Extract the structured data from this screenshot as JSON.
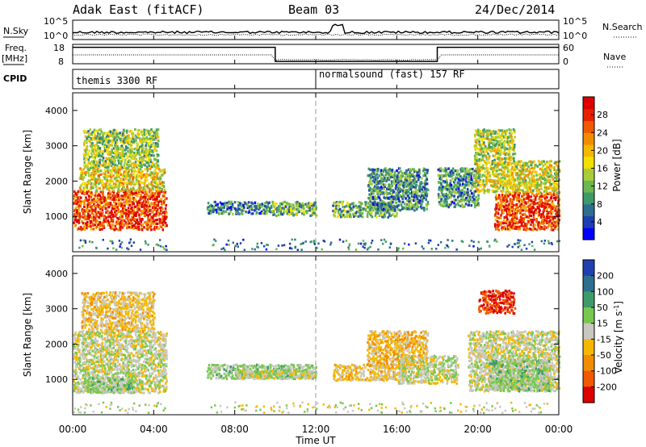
{
  "header": {
    "radar": "Adak East (fitACF)",
    "beam": "Beam 03",
    "date": "24/Dec/2014"
  },
  "strip_labels": {
    "nsky": "N.Sky",
    "freq_line1": "Freq.",
    "freq_line2": "[MHz]",
    "cpid": "CPID",
    "nsearch": "N.Search",
    "nave": "Nave"
  },
  "strip_ticks": {
    "noise_top": "10^5",
    "noise_bottom": "10^0",
    "freq_top": "18",
    "freq_bottom": "8",
    "nave_top": "60",
    "nave_bottom": "0"
  },
  "cpid": {
    "left_label": "themis 3300 RF",
    "right_label": "normalsound (fast) 157 RF"
  },
  "chart_data": [
    {
      "type": "heatmap",
      "name": "power",
      "ylabel": "Slant Range [km]",
      "yticks": [
        "1000",
        "2000",
        "3000",
        "4000"
      ],
      "ylim": [
        0,
        4500
      ],
      "colorbar": {
        "label": "Power [dB]",
        "ticks": [
          "4",
          "8",
          "12",
          "16",
          "20",
          "24",
          "28"
        ],
        "range": [
          0,
          32
        ],
        "colors": [
          "#0000ff",
          "#1e3fb0",
          "#2e6e8e",
          "#3f9a6a",
          "#6ab84e",
          "#a8cc3a",
          "#f2e000",
          "#f5b800",
          "#f28c00",
          "#f05a00",
          "#e82000",
          "#dd0000"
        ]
      },
      "echo_regions": [
        {
          "t": [
            0.0,
            4.6
          ],
          "r": [
            650,
            1750
          ],
          "value": 27
        },
        {
          "t": [
            0.3,
            4.5
          ],
          "r": [
            1750,
            2400
          ],
          "value": 18
        },
        {
          "t": [
            0.5,
            4.2
          ],
          "r": [
            2400,
            3500
          ],
          "value": 14
        },
        {
          "t": [
            6.6,
            9.8
          ],
          "r": [
            1100,
            1450
          ],
          "value": 8
        },
        {
          "t": [
            9.8,
            12.0
          ],
          "r": [
            1050,
            1450
          ],
          "value": 12
        },
        {
          "t": [
            12.8,
            16.0
          ],
          "r": [
            1000,
            1450
          ],
          "value": 11
        },
        {
          "t": [
            14.5,
            17.5
          ],
          "r": [
            1200,
            2400
          ],
          "value": 9
        },
        {
          "t": [
            18.0,
            20.0
          ],
          "r": [
            1300,
            2400
          ],
          "value": 9
        },
        {
          "t": [
            19.8,
            24.0
          ],
          "r": [
            1700,
            2600
          ],
          "value": 17
        },
        {
          "t": [
            20.8,
            24.0
          ],
          "r": [
            650,
            1700
          ],
          "value": 27
        },
        {
          "t": [
            19.8,
            21.8
          ],
          "r": [
            2600,
            3500
          ],
          "value": 15
        }
      ]
    },
    {
      "type": "heatmap",
      "name": "velocity",
      "ylabel": "Slant Range [km]",
      "yticks": [
        "1000",
        "2000",
        "3000",
        "4000"
      ],
      "ylim": [
        0,
        4500
      ],
      "colorbar": {
        "label": "Velocity [m s^-1]",
        "ticks": [
          "200",
          "100",
          "50",
          "15",
          "-15",
          "-50",
          "-100",
          "-200"
        ],
        "range": [
          -250,
          250
        ],
        "colors": [
          "#2040b0",
          "#2e6e8e",
          "#3f9a6a",
          "#78c850",
          "#c8c8c0",
          "#f5b800",
          "#f28c00",
          "#f05a00",
          "#dd0000"
        ]
      },
      "echo_regions": [
        {
          "t": [
            0.0,
            4.6
          ],
          "r": [
            650,
            2400
          ],
          "value": 0
        },
        {
          "t": [
            0.5,
            3.0
          ],
          "r": [
            650,
            1100
          ],
          "value": 40
        },
        {
          "t": [
            0.4,
            4.0
          ],
          "r": [
            2400,
            3500
          ],
          "value": -40
        },
        {
          "t": [
            6.6,
            12.0
          ],
          "r": [
            1050,
            1450
          ],
          "value": 40
        },
        {
          "t": [
            8.0,
            12.0
          ],
          "r": [
            1050,
            1300
          ],
          "value": 0
        },
        {
          "t": [
            12.8,
            16.5
          ],
          "r": [
            1000,
            1450
          ],
          "value": -45
        },
        {
          "t": [
            14.5,
            17.5
          ],
          "r": [
            1400,
            2400
          ],
          "value": -60
        },
        {
          "t": [
            16.0,
            19.0
          ],
          "r": [
            900,
            1700
          ],
          "value": 0
        },
        {
          "t": [
            19.5,
            24.0
          ],
          "r": [
            700,
            2400
          ],
          "value": 0
        },
        {
          "t": [
            20.5,
            23.5
          ],
          "r": [
            700,
            1600
          ],
          "value": 40
        },
        {
          "t": [
            20.0,
            21.8
          ],
          "r": [
            2900,
            3550
          ],
          "value": -200
        }
      ]
    }
  ],
  "time_axis": {
    "label": "Time UT",
    "ticks": [
      "00:00",
      "04:00",
      "08:00",
      "12:00",
      "16:00",
      "20:00",
      "00:00"
    ],
    "range_hours": [
      0,
      24
    ]
  },
  "freq_trace": {
    "hours": [
      0,
      10.0,
      10.0,
      18.0,
      18.0,
      24.0
    ],
    "mhz": [
      16.5,
      16.5,
      9.2,
      9.2,
      16.5,
      16.5
    ]
  }
}
